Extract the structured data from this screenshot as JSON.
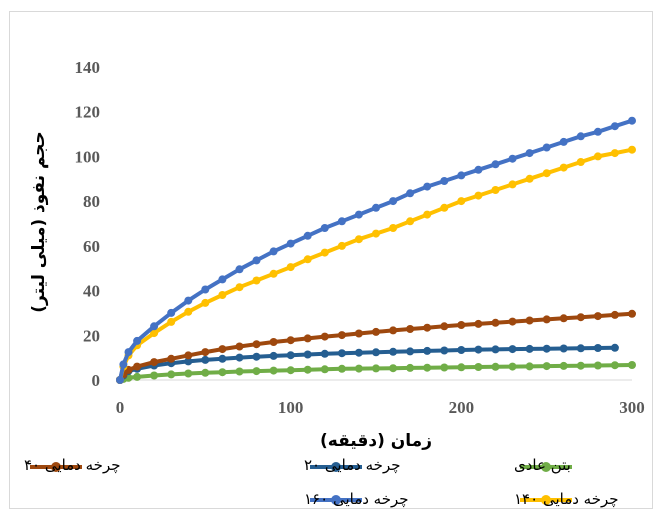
{
  "chart_data": {
    "type": "line",
    "title": "",
    "xlabel": "زمان (دقیقه)",
    "ylabel": "حجم نفوذ (میلی لیتر)",
    "xlim": [
      0,
      300
    ],
    "ylim": [
      0,
      140
    ],
    "x_ticks": [
      "0",
      "100",
      "200",
      "300"
    ],
    "y_ticks": [
      "0",
      "20",
      "40",
      "60",
      "80",
      "100",
      "120",
      "140"
    ],
    "grid": false,
    "legend_position": "bottom",
    "series": [
      {
        "name": "بتن عادی",
        "color": "#70ad47",
        "x": [
          0,
          2,
          5,
          10,
          20,
          30,
          40,
          50,
          60,
          70,
          80,
          90,
          100,
          110,
          120,
          130,
          140,
          150,
          160,
          170,
          180,
          190,
          200,
          210,
          220,
          230,
          240,
          250,
          260,
          270,
          280,
          290,
          300
        ],
        "y": [
          0,
          0.5,
          1.0,
          1.4,
          2.0,
          2.5,
          2.9,
          3.2,
          3.5,
          3.8,
          4.0,
          4.2,
          4.4,
          4.6,
          4.8,
          5.0,
          5.1,
          5.2,
          5.3,
          5.4,
          5.5,
          5.6,
          5.7,
          5.8,
          5.9,
          6.0,
          6.1,
          6.2,
          6.3,
          6.4,
          6.5,
          6.6,
          6.7
        ]
      },
      {
        "name": "چرخه دمایی ۲۰",
        "color": "#255e91",
        "x": [
          0,
          2,
          5,
          10,
          20,
          30,
          40,
          50,
          60,
          70,
          80,
          90,
          100,
          110,
          120,
          130,
          140,
          150,
          160,
          170,
          180,
          190,
          200,
          210,
          220,
          230,
          240,
          250,
          260,
          270,
          280,
          290
        ],
        "y": [
          0,
          2.0,
          4.0,
          5.0,
          6.5,
          7.5,
          8.3,
          9.0,
          9.5,
          10.0,
          10.4,
          10.8,
          11.1,
          11.4,
          11.7,
          12.0,
          12.2,
          12.4,
          12.6,
          12.8,
          13.0,
          13.2,
          13.4,
          13.6,
          13.7,
          13.8,
          13.9,
          14.0,
          14.1,
          14.2,
          14.3,
          14.4
        ]
      },
      {
        "name": "چرخه دمایی ۴۰",
        "color": "#9e480e",
        "x": [
          0,
          2,
          5,
          10,
          20,
          30,
          40,
          50,
          60,
          70,
          80,
          90,
          100,
          110,
          120,
          130,
          140,
          150,
          160,
          170,
          180,
          190,
          200,
          210,
          220,
          230,
          240,
          250,
          260,
          270,
          280,
          290,
          300
        ],
        "y": [
          0,
          2.5,
          4.5,
          6.0,
          8.0,
          9.5,
          11.0,
          12.5,
          13.8,
          15.0,
          16.0,
          17.0,
          17.8,
          18.6,
          19.4,
          20.1,
          20.8,
          21.5,
          22.2,
          22.8,
          23.4,
          24.0,
          24.6,
          25.1,
          25.6,
          26.1,
          26.6,
          27.1,
          27.6,
          28.1,
          28.6,
          29.1,
          29.6
        ]
      },
      {
        "name": "چرخه دمایی ۱۴۰",
        "color": "#ffc000",
        "x": [
          0,
          2,
          5,
          10,
          20,
          30,
          40,
          50,
          60,
          70,
          80,
          90,
          100,
          110,
          120,
          130,
          140,
          150,
          160,
          170,
          180,
          190,
          200,
          210,
          220,
          230,
          240,
          250,
          260,
          270,
          280,
          290,
          300
        ],
        "y": [
          0,
          6.0,
          11.0,
          15.5,
          21.0,
          26.0,
          30.5,
          34.5,
          38.0,
          41.5,
          44.5,
          47.5,
          50.5,
          54.0,
          57.0,
          60.0,
          63.0,
          65.5,
          68.0,
          71.0,
          74.0,
          77.0,
          80.0,
          82.5,
          85.0,
          87.5,
          90.0,
          92.5,
          95.0,
          97.5,
          100.0,
          101.5,
          103.0
        ]
      },
      {
        "name": "چرخه دمایی ۱۶۰",
        "color": "#4472c4",
        "x": [
          0,
          2,
          5,
          10,
          20,
          30,
          40,
          50,
          60,
          70,
          80,
          90,
          100,
          110,
          120,
          130,
          140,
          150,
          160,
          170,
          180,
          190,
          200,
          210,
          220,
          230,
          240,
          250,
          260,
          270,
          280,
          290,
          300
        ],
        "y": [
          0,
          7.0,
          12.5,
          17.5,
          24.0,
          30.0,
          35.5,
          40.5,
          45.0,
          49.5,
          53.5,
          57.5,
          61.0,
          64.5,
          68.0,
          71.0,
          74.0,
          77.0,
          80.0,
          83.5,
          86.5,
          89.0,
          91.5,
          94.0,
          96.5,
          99.0,
          101.5,
          104.0,
          106.5,
          109.0,
          111.0,
          113.5,
          116.0
        ]
      }
    ]
  }
}
